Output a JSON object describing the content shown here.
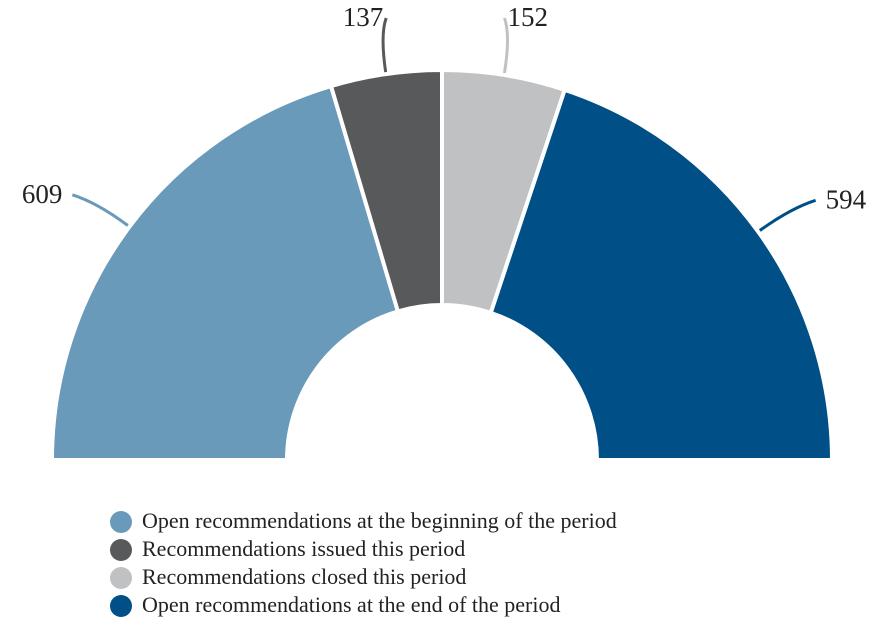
{
  "chart_data": {
    "type": "donut",
    "semicircle": true,
    "categories": [
      "Open recommendations at the beginning of the period",
      "Recommendations issued this period",
      "Recommendations closed this period",
      "Open recommendations at the end of the period"
    ],
    "values": [
      609,
      137,
      152,
      594
    ],
    "colors": [
      "#6a9ab9",
      "#58595b",
      "#c0c1c3",
      "#004f87"
    ],
    "legend": "bottom"
  }
}
